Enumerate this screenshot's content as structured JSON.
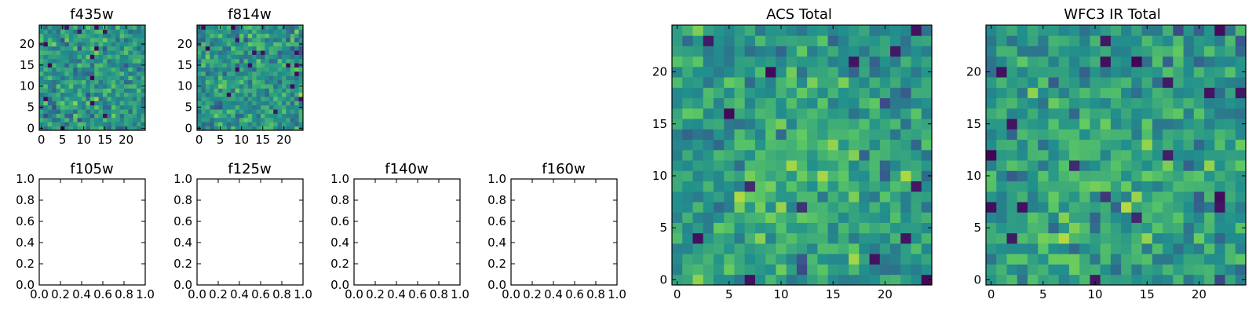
{
  "colors": {
    "axis": "#000000",
    "colormap": "viridis",
    "scale_stops": [
      "#440154",
      "#3b528b",
      "#21908d",
      "#5dc863",
      "#fde725"
    ]
  },
  "chart_data": [
    {
      "type": "heatmap",
      "title": "f435w",
      "xlim": [
        -0.5,
        24.5
      ],
      "ylim": [
        -0.5,
        24.5
      ],
      "xticks": [
        0,
        5,
        10,
        15,
        20
      ],
      "xtick_labels": [
        "0",
        "5",
        "10",
        "15",
        "20"
      ],
      "yticks": [
        0,
        5,
        10,
        15,
        20
      ],
      "ytick_labels": [
        "0",
        "5",
        "10",
        "15",
        "20"
      ],
      "grid_size": [
        25,
        25
      ],
      "origin": "lower",
      "colormap": "viridis",
      "has_image": true,
      "values": []
    },
    {
      "type": "heatmap",
      "title": "f814w",
      "xlim": [
        -0.5,
        24.5
      ],
      "ylim": [
        -0.5,
        24.5
      ],
      "xticks": [
        0,
        5,
        10,
        15,
        20
      ],
      "xtick_labels": [
        "0",
        "5",
        "10",
        "15",
        "20"
      ],
      "yticks": [
        0,
        5,
        10,
        15,
        20
      ],
      "ytick_labels": [
        "0",
        "5",
        "10",
        "15",
        "20"
      ],
      "grid_size": [
        25,
        25
      ],
      "origin": "lower",
      "colormap": "viridis",
      "has_image": true,
      "values": []
    },
    {
      "type": "heatmap",
      "title": "f105w",
      "xlim": [
        0,
        1
      ],
      "ylim": [
        0,
        1
      ],
      "xticks": [
        0,
        0.2,
        0.4,
        0.6,
        0.8,
        1.0
      ],
      "xtick_labels": [
        "0.0",
        "0.2",
        "0.4",
        "0.6",
        "0.8",
        "1.0"
      ],
      "yticks": [
        0,
        0.2,
        0.4,
        0.6,
        0.8,
        1.0
      ],
      "ytick_labels": [
        "0.0",
        "0.2",
        "0.4",
        "0.6",
        "0.8",
        "1.0"
      ],
      "has_image": false
    },
    {
      "type": "heatmap",
      "title": "f125w",
      "xlim": [
        0,
        1
      ],
      "ylim": [
        0,
        1
      ],
      "xticks": [
        0,
        0.2,
        0.4,
        0.6,
        0.8,
        1.0
      ],
      "xtick_labels": [
        "0.0",
        "0.2",
        "0.4",
        "0.6",
        "0.8",
        "1.0"
      ],
      "yticks": [
        0,
        0.2,
        0.4,
        0.6,
        0.8,
        1.0
      ],
      "ytick_labels": [
        "0.0",
        "0.2",
        "0.4",
        "0.6",
        "0.8",
        "1.0"
      ],
      "has_image": false
    },
    {
      "type": "heatmap",
      "title": "f140w",
      "xlim": [
        0,
        1
      ],
      "ylim": [
        0,
        1
      ],
      "xticks": [
        0,
        0.2,
        0.4,
        0.6,
        0.8,
        1.0
      ],
      "xtick_labels": [
        "0.0",
        "0.2",
        "0.4",
        "0.6",
        "0.8",
        "1.0"
      ],
      "yticks": [
        0,
        0.2,
        0.4,
        0.6,
        0.8,
        1.0
      ],
      "ytick_labels": [
        "0.0",
        "0.2",
        "0.4",
        "0.6",
        "0.8",
        "1.0"
      ],
      "has_image": false
    },
    {
      "type": "heatmap",
      "title": "f160w",
      "xlim": [
        0,
        1
      ],
      "ylim": [
        0,
        1
      ],
      "xticks": [
        0,
        0.2,
        0.4,
        0.6,
        0.8,
        1.0
      ],
      "xtick_labels": [
        "0.0",
        "0.2",
        "0.4",
        "0.6",
        "0.8",
        "1.0"
      ],
      "yticks": [
        0,
        0.2,
        0.4,
        0.6,
        0.8,
        1.0
      ],
      "ytick_labels": [
        "0.0",
        "0.2",
        "0.4",
        "0.6",
        "0.8",
        "1.0"
      ],
      "has_image": false
    },
    {
      "type": "heatmap",
      "title": "ACS Total",
      "xlim": [
        -0.5,
        24.5
      ],
      "ylim": [
        -0.5,
        24.5
      ],
      "xticks": [
        0,
        5,
        10,
        15,
        20
      ],
      "xtick_labels": [
        "0",
        "5",
        "10",
        "15",
        "20"
      ],
      "yticks": [
        0,
        5,
        10,
        15,
        20
      ],
      "ytick_labels": [
        "0",
        "5",
        "10",
        "15",
        "20"
      ],
      "grid_size": [
        25,
        25
      ],
      "origin": "lower",
      "colormap": "viridis",
      "has_image": true,
      "values": []
    },
    {
      "type": "heatmap",
      "title": "WFC3 IR Total",
      "xlim": [
        -0.5,
        24.5
      ],
      "ylim": [
        -0.5,
        24.5
      ],
      "xticks": [
        0,
        5,
        10,
        15,
        20
      ],
      "xtick_labels": [
        "0",
        "5",
        "10",
        "15",
        "20"
      ],
      "yticks": [
        0,
        5,
        10,
        15,
        20
      ],
      "ytick_labels": [
        "0",
        "5",
        "10",
        "15",
        "20"
      ],
      "grid_size": [
        25,
        25
      ],
      "origin": "lower",
      "colormap": "viridis",
      "has_image": true,
      "values": []
    }
  ]
}
